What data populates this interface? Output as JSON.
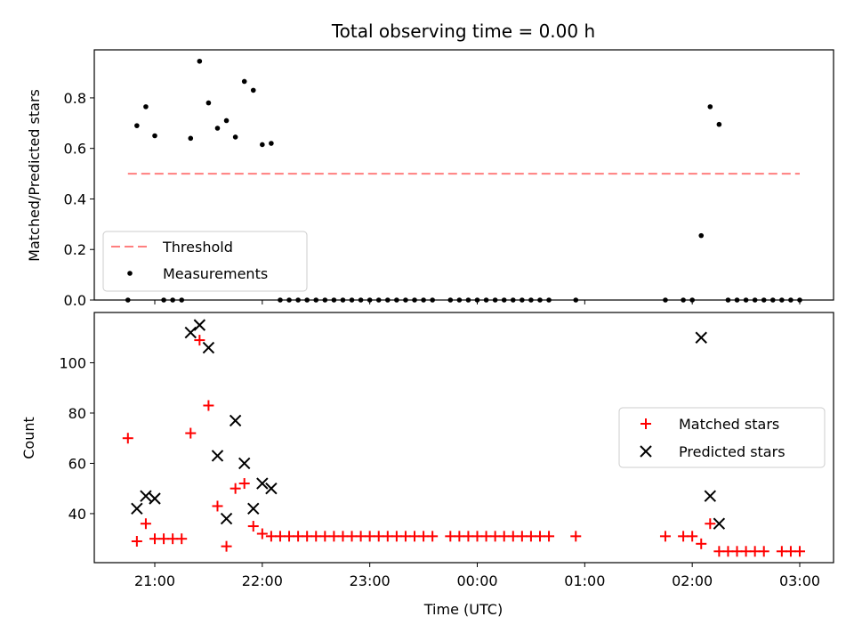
{
  "chart_data": [
    {
      "type": "scatter",
      "title": "Total observing time = 0.00 h",
      "xlabel": "",
      "ylabel": "Matched/Predicted stars",
      "ylim": [
        0,
        1.0
      ],
      "yticks": [
        "0.0",
        "0.2",
        "0.4",
        "0.6",
        "0.8"
      ],
      "ytick_values": [
        0,
        0.2,
        0.4,
        0.6,
        0.8
      ],
      "legend_position": "lower-left",
      "threshold": {
        "name": "Threshold",
        "value": 0.5,
        "x_start": "20:45",
        "x_end": "03:00",
        "color": "#ff7f7f"
      },
      "series": [
        {
          "name": "Measurements",
          "color": "#000000",
          "points": [
            [
              "20:45",
              0.0
            ],
            [
              "20:50",
              0.69
            ],
            [
              "20:55",
              0.765
            ],
            [
              "21:00",
              0.65
            ],
            [
              "21:05",
              0.0
            ],
            [
              "21:10",
              0.0
            ],
            [
              "21:15",
              0.0
            ],
            [
              "21:20",
              0.64
            ],
            [
              "21:25",
              0.945
            ],
            [
              "21:30",
              0.78
            ],
            [
              "21:35",
              0.68
            ],
            [
              "21:40",
              0.71
            ],
            [
              "21:45",
              0.645
            ],
            [
              "21:50",
              0.865
            ],
            [
              "21:55",
              0.83
            ],
            [
              "22:00",
              0.615
            ],
            [
              "22:05",
              0.62
            ],
            [
              "22:10",
              0.0
            ],
            [
              "22:15",
              0.0
            ],
            [
              "22:20",
              0.0
            ],
            [
              "22:25",
              0.0
            ],
            [
              "22:30",
              0.0
            ],
            [
              "22:35",
              0.0
            ],
            [
              "22:40",
              0.0
            ],
            [
              "22:45",
              0.0
            ],
            [
              "22:50",
              0.0
            ],
            [
              "22:55",
              0.0
            ],
            [
              "23:00",
              0.0
            ],
            [
              "23:05",
              0.0
            ],
            [
              "23:10",
              0.0
            ],
            [
              "23:15",
              0.0
            ],
            [
              "23:20",
              0.0
            ],
            [
              "23:25",
              0.0
            ],
            [
              "23:30",
              0.0
            ],
            [
              "23:35",
              0.0
            ],
            [
              "23:45",
              0.0
            ],
            [
              "23:50",
              0.0
            ],
            [
              "23:55",
              0.0
            ],
            [
              "00:00",
              0.0
            ],
            [
              "00:05",
              0.0
            ],
            [
              "00:10",
              0.0
            ],
            [
              "00:15",
              0.0
            ],
            [
              "00:20",
              0.0
            ],
            [
              "00:25",
              0.0
            ],
            [
              "00:30",
              0.0
            ],
            [
              "00:35",
              0.0
            ],
            [
              "00:40",
              0.0
            ],
            [
              "00:55",
              0.0
            ],
            [
              "01:45",
              0.0
            ],
            [
              "01:55",
              0.0
            ],
            [
              "02:00",
              0.0
            ],
            [
              "02:05",
              0.255
            ],
            [
              "02:10",
              0.765
            ],
            [
              "02:15",
              0.695
            ],
            [
              "02:20",
              0.0
            ],
            [
              "02:25",
              0.0
            ],
            [
              "02:30",
              0.0
            ],
            [
              "02:35",
              0.0
            ],
            [
              "02:40",
              0.0
            ],
            [
              "02:45",
              0.0
            ],
            [
              "02:50",
              0.0
            ],
            [
              "02:55",
              0.0
            ],
            [
              "03:00",
              0.0
            ]
          ]
        }
      ]
    },
    {
      "type": "scatter",
      "title": "",
      "xlabel": "Time (UTC)",
      "ylabel": "Count",
      "ylim": [
        20,
        120
      ],
      "yticks": [
        "40",
        "60",
        "80",
        "100"
      ],
      "ytick_values": [
        40,
        60,
        80,
        100
      ],
      "xticks": [
        "21:00",
        "22:00",
        "23:00",
        "00:00",
        "01:00",
        "02:00",
        "03:00"
      ],
      "legend_position": "center-right",
      "series": [
        {
          "name": "Matched stars",
          "marker": "+",
          "color": "#ff0000",
          "points": [
            [
              "20:45",
              70
            ],
            [
              "20:50",
              29
            ],
            [
              "20:55",
              36
            ],
            [
              "21:00",
              30
            ],
            [
              "21:05",
              30
            ],
            [
              "21:10",
              30
            ],
            [
              "21:15",
              30
            ],
            [
              "21:20",
              72
            ],
            [
              "21:25",
              109
            ],
            [
              "21:30",
              83
            ],
            [
              "21:35",
              43
            ],
            [
              "21:40",
              27
            ],
            [
              "21:45",
              50
            ],
            [
              "21:50",
              52
            ],
            [
              "21:55",
              35
            ],
            [
              "22:00",
              32
            ],
            [
              "22:05",
              31
            ],
            [
              "22:10",
              31
            ],
            [
              "22:15",
              31
            ],
            [
              "22:20",
              31
            ],
            [
              "22:25",
              31
            ],
            [
              "22:30",
              31
            ],
            [
              "22:35",
              31
            ],
            [
              "22:40",
              31
            ],
            [
              "22:45",
              31
            ],
            [
              "22:50",
              31
            ],
            [
              "22:55",
              31
            ],
            [
              "23:00",
              31
            ],
            [
              "23:05",
              31
            ],
            [
              "23:10",
              31
            ],
            [
              "23:15",
              31
            ],
            [
              "23:20",
              31
            ],
            [
              "23:25",
              31
            ],
            [
              "23:30",
              31
            ],
            [
              "23:35",
              31
            ],
            [
              "23:45",
              31
            ],
            [
              "23:50",
              31
            ],
            [
              "23:55",
              31
            ],
            [
              "00:00",
              31
            ],
            [
              "00:05",
              31
            ],
            [
              "00:10",
              31
            ],
            [
              "00:15",
              31
            ],
            [
              "00:20",
              31
            ],
            [
              "00:25",
              31
            ],
            [
              "00:30",
              31
            ],
            [
              "00:35",
              31
            ],
            [
              "00:40",
              31
            ],
            [
              "00:55",
              31
            ],
            [
              "01:45",
              31
            ],
            [
              "01:55",
              31
            ],
            [
              "02:00",
              31
            ],
            [
              "02:05",
              28
            ],
            [
              "02:10",
              36
            ],
            [
              "02:15",
              25
            ],
            [
              "02:20",
              25
            ],
            [
              "02:25",
              25
            ],
            [
              "02:30",
              25
            ],
            [
              "02:35",
              25
            ],
            [
              "02:40",
              25
            ],
            [
              "02:50",
              25
            ],
            [
              "02:55",
              25
            ],
            [
              "03:00",
              25
            ]
          ]
        },
        {
          "name": "Predicted stars",
          "marker": "x",
          "color": "#000000",
          "points": [
            [
              "20:50",
              42
            ],
            [
              "20:55",
              47
            ],
            [
              "21:00",
              46
            ],
            [
              "21:20",
              112
            ],
            [
              "21:25",
              115
            ],
            [
              "21:30",
              106
            ],
            [
              "21:35",
              63
            ],
            [
              "21:40",
              38
            ],
            [
              "21:45",
              77
            ],
            [
              "21:50",
              60
            ],
            [
              "21:55",
              42
            ],
            [
              "22:00",
              52
            ],
            [
              "22:05",
              50
            ],
            [
              "02:05",
              110
            ],
            [
              "02:10",
              47
            ],
            [
              "02:15",
              36
            ]
          ]
        }
      ]
    }
  ]
}
